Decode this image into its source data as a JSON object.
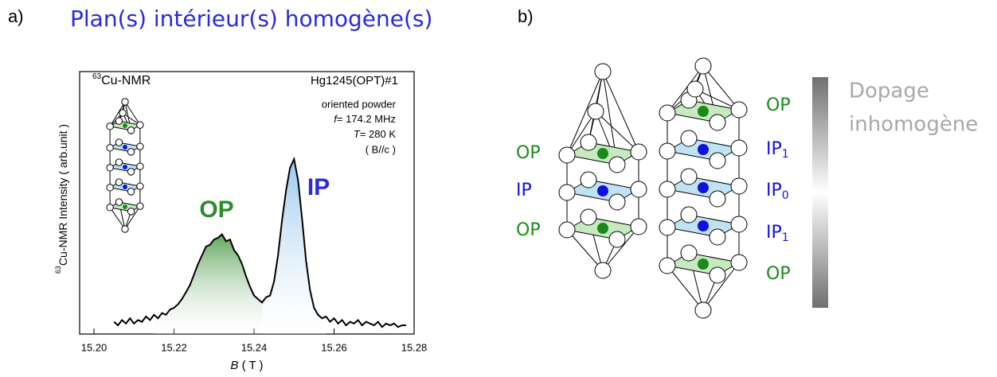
{
  "panel_a": {
    "label": "a)",
    "heading": "Plan(s) intérieur(s) homogène(s)"
  },
  "chart_data": {
    "type": "line",
    "color": "#000000",
    "nucleus": {
      "sup": "63",
      "text": "Cu-NMR"
    },
    "sample": "Hg1245(OPT)#1",
    "conditions": [
      "oriented powder",
      {
        "italic": "f",
        "text": "= 174.2 MHz"
      },
      {
        "italic": "T",
        "text": "= 280 K"
      },
      "( B//c )"
    ],
    "xlabel": {
      "italic": "B",
      "text": " ( T )"
    },
    "ylabel": {
      "sup": "63",
      "text": "Cu-NMR Intensity ( arb.unit )"
    },
    "annotations": [
      {
        "text": "OP",
        "color": "#2e8b2e"
      },
      {
        "text": "IP",
        "color": "#2a2ae0"
      }
    ],
    "xlim": [
      15.2,
      15.28
    ],
    "xticks": [
      {
        "value": 15.2,
        "label": "15.20"
      },
      {
        "value": 15.22,
        "label": "15.22"
      },
      {
        "value": 15.24,
        "label": "15.24"
      },
      {
        "value": 15.26,
        "label": "15.26"
      },
      {
        "value": 15.28,
        "label": "15.28"
      }
    ],
    "ylim": [
      0,
      1.5
    ],
    "x": [
      15.205,
      15.206,
      15.207,
      15.208,
      15.209,
      15.21,
      15.211,
      15.212,
      15.213,
      15.214,
      15.215,
      15.216,
      15.217,
      15.218,
      15.219,
      15.22,
      15.221,
      15.222,
      15.223,
      15.224,
      15.225,
      15.226,
      15.227,
      15.228,
      15.229,
      15.23,
      15.231,
      15.232,
      15.233,
      15.234,
      15.235,
      15.236,
      15.237,
      15.238,
      15.239,
      15.24,
      15.241,
      15.242,
      15.243,
      15.244,
      15.245,
      15.246,
      15.247,
      15.248,
      15.249,
      15.25,
      15.251,
      15.252,
      15.253,
      15.254,
      15.255,
      15.256,
      15.257,
      15.258,
      15.259,
      15.26,
      15.261,
      15.262,
      15.263,
      15.264,
      15.265,
      15.266,
      15.267,
      15.268,
      15.269,
      15.27,
      15.271,
      15.272,
      15.273,
      15.274,
      15.275,
      15.276,
      15.277,
      15.278
    ],
    "values": [
      0.07,
      0.05,
      0.08,
      0.06,
      0.09,
      0.06,
      0.08,
      0.07,
      0.1,
      0.08,
      0.11,
      0.09,
      0.12,
      0.11,
      0.14,
      0.15,
      0.17,
      0.2,
      0.24,
      0.28,
      0.34,
      0.4,
      0.45,
      0.5,
      0.51,
      0.54,
      0.55,
      0.57,
      0.53,
      0.54,
      0.48,
      0.45,
      0.4,
      0.33,
      0.27,
      0.22,
      0.2,
      0.18,
      0.21,
      0.22,
      0.3,
      0.45,
      0.65,
      0.82,
      0.95,
      1.0,
      0.88,
      0.66,
      0.42,
      0.25,
      0.15,
      0.11,
      0.09,
      0.1,
      0.07,
      0.09,
      0.06,
      0.08,
      0.05,
      0.07,
      0.06,
      0.08,
      0.05,
      0.07,
      0.06,
      0.05,
      0.07,
      0.04,
      0.06,
      0.05,
      0.06,
      0.04,
      0.05,
      0.05
    ]
  },
  "panel_b": {
    "label": "b)",
    "left_stack": [
      {
        "text": "OP"
      },
      {
        "text": "IP"
      },
      {
        "text": "OP"
      }
    ],
    "right_stack": [
      {
        "text": "OP"
      },
      {
        "text": "IP",
        "sub": "1"
      },
      {
        "text": "IP",
        "sub": "0"
      },
      {
        "text": "IP",
        "sub": "1"
      },
      {
        "text": "OP"
      }
    ],
    "doping": [
      "Dopage",
      "inhomogène"
    ]
  }
}
